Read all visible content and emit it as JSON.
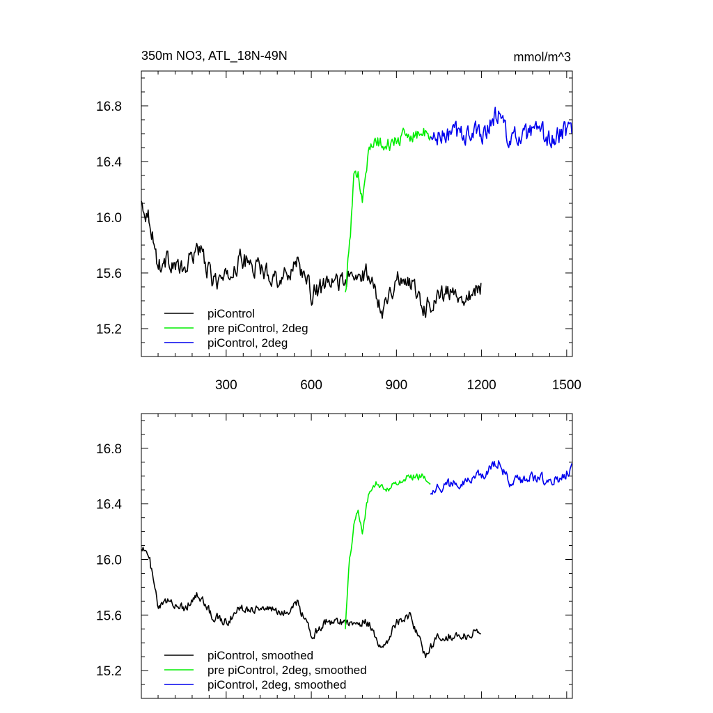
{
  "chart_data": [
    {
      "type": "line",
      "title": "350m NO3, ATL_18N-49N",
      "units": "mmol/m^3",
      "xlim": [
        1,
        1520
      ],
      "ylim": [
        15.0,
        17.05
      ],
      "xticks": [
        300,
        600,
        900,
        1200,
        1500
      ],
      "xtick_labels": [
        "300",
        "600",
        "900",
        "1200",
        "1500"
      ],
      "yticks": [
        15.2,
        15.6,
        16.0,
        16.4,
        16.8
      ],
      "ytick_labels": [
        "15.2",
        "15.6",
        "16.0",
        "16.4",
        "16.8"
      ],
      "grid": false,
      "legend_position": "bottom-left",
      "series": [
        {
          "name": "piControl",
          "color": "#000000",
          "x_range": [
            1,
            1200
          ],
          "noise": 0.11,
          "x": [
            1,
            30,
            60,
            100,
            150,
            200,
            250,
            300,
            350,
            400,
            450,
            500,
            550,
            600,
            650,
            700,
            750,
            800,
            850,
            900,
            950,
            1000,
            1050,
            1100,
            1150,
            1200
          ],
          "values": [
            16.1,
            16.0,
            15.65,
            15.7,
            15.6,
            15.8,
            15.55,
            15.55,
            15.7,
            15.65,
            15.6,
            15.55,
            15.7,
            15.45,
            15.5,
            15.55,
            15.55,
            15.6,
            15.35,
            15.55,
            15.55,
            15.35,
            15.45,
            15.45,
            15.45,
            15.5
          ]
        },
        {
          "name": "pre piControl, 2deg",
          "color": "#00ee00",
          "x_range": [
            720,
            1020
          ],
          "noise": 0.08,
          "x": [
            720,
            735,
            750,
            765,
            780,
            800,
            830,
            860,
            900,
            950,
            1000,
            1020
          ],
          "values": [
            15.45,
            15.8,
            16.25,
            16.35,
            16.15,
            16.45,
            16.55,
            16.5,
            16.55,
            16.6,
            16.6,
            16.55
          ]
        },
        {
          "name": "piControl, 2deg",
          "color": "#0000ee",
          "x_range": [
            1020,
            1520
          ],
          "noise": 0.12,
          "x": [
            1020,
            1100,
            1200,
            1260,
            1300,
            1400,
            1450,
            1520
          ],
          "values": [
            16.55,
            16.6,
            16.6,
            16.75,
            16.55,
            16.6,
            16.55,
            16.65
          ]
        }
      ]
    },
    {
      "type": "line",
      "xlim": [
        1,
        1520
      ],
      "ylim": [
        15.0,
        17.05
      ],
      "xticks": [
        300,
        600,
        900,
        1200,
        1500
      ],
      "yticks": [
        15.2,
        15.6,
        16.0,
        16.4,
        16.8
      ],
      "ytick_labels": [
        "15.2",
        "15.6",
        "16.0",
        "16.4",
        "16.8"
      ],
      "grid": false,
      "legend_position": "bottom-left",
      "series": [
        {
          "name": "piControl, smoothed",
          "color": "#000000",
          "x_range": [
            1,
            1200
          ],
          "noise": 0.05,
          "x": [
            1,
            30,
            60,
            100,
            150,
            200,
            250,
            300,
            350,
            400,
            450,
            500,
            550,
            600,
            650,
            700,
            750,
            800,
            850,
            900,
            950,
            1000,
            1050,
            1100,
            1150,
            1200
          ],
          "values": [
            16.1,
            16.0,
            15.65,
            15.7,
            15.65,
            15.75,
            15.6,
            15.55,
            15.65,
            15.65,
            15.65,
            15.6,
            15.7,
            15.45,
            15.55,
            15.55,
            15.55,
            15.55,
            15.35,
            15.55,
            15.6,
            15.3,
            15.45,
            15.45,
            15.45,
            15.5
          ]
        },
        {
          "name": "pre piControl, 2deg, smoothed",
          "color": "#00ee00",
          "x_range": [
            720,
            1020
          ],
          "noise": 0.04,
          "x": [
            720,
            735,
            750,
            765,
            780,
            800,
            830,
            860,
            900,
            950,
            1000,
            1020
          ],
          "values": [
            15.52,
            16.0,
            16.25,
            16.35,
            16.2,
            16.45,
            16.55,
            16.5,
            16.55,
            16.6,
            16.6,
            16.55
          ]
        },
        {
          "name": "piControl, 2deg, smoothed",
          "color": "#0000ee",
          "x_range": [
            1020,
            1520
          ],
          "noise": 0.06,
          "x": [
            1020,
            1100,
            1200,
            1260,
            1300,
            1400,
            1450,
            1520
          ],
          "values": [
            16.5,
            16.55,
            16.6,
            16.7,
            16.55,
            16.6,
            16.55,
            16.65
          ]
        }
      ]
    }
  ]
}
